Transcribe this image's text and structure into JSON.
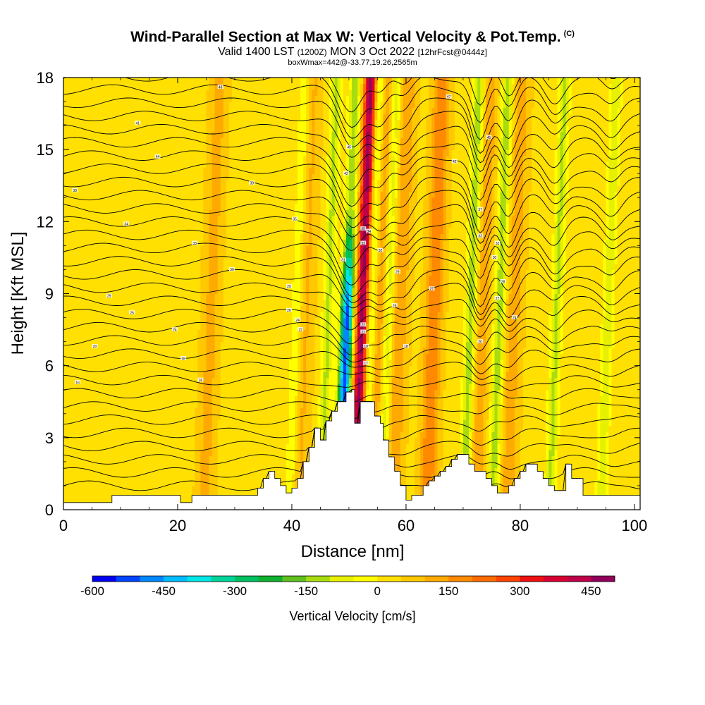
{
  "header": {
    "title": "Wind-Parallel Section at Max W: Vertical Velocity & Pot.Temp.",
    "copyright": "(C)",
    "valid_main": "Valid 1400 LST",
    "valid_utc": "(1200Z)",
    "valid_date": "MON 3 Oct 2022",
    "forecast": "[12hrFcst@0444z]",
    "box_info": "boxWmax=442@-33.77,19.26,2565m"
  },
  "chart_data": {
    "type": "heatmap",
    "title": "Wind-Parallel Section at Max W: Vertical Velocity & Pot.Temp.",
    "xlabel": "Distance [nm]",
    "ylabel": "Height [Kft MSL]",
    "xlim": [
      0,
      101
    ],
    "ylim": [
      0,
      18
    ],
    "x_ticks": [
      0,
      20,
      40,
      60,
      80,
      100
    ],
    "x_tick_labels": [
      "0",
      "20",
      "40",
      "60",
      "80",
      "100"
    ],
    "y_ticks": [
      0,
      3,
      6,
      9,
      12,
      15,
      18
    ],
    "y_tick_labels": [
      "0",
      "3",
      "6",
      "9",
      "12",
      "15",
      "18"
    ],
    "colorbar": {
      "label": "Vertical Velocity [cm/s]",
      "min": -600,
      "max": 500,
      "tick_values": [
        -600,
        -450,
        -300,
        -150,
        0,
        150,
        300,
        450
      ],
      "tick_labels": [
        "-600",
        "-450",
        "-300",
        "-150",
        "0",
        "150",
        "300",
        "450"
      ],
      "colors": [
        "#0000ee",
        "#0044ff",
        "#0088ff",
        "#00bbff",
        "#00e6e6",
        "#00d49a",
        "#00c060",
        "#10b030",
        "#60c020",
        "#a8dc10",
        "#e6f000",
        "#ffff00",
        "#ffe000",
        "#ffc800",
        "#ffaa00",
        "#ff8a00",
        "#ff6a00",
        "#ff4400",
        "#ee1111",
        "#d80030",
        "#c00048",
        "#90005a"
      ]
    },
    "background_w": 40,
    "updraft_cores": [
      {
        "x": 52.5,
        "w": 440
      },
      {
        "x": 55.5,
        "w": 120
      },
      {
        "x": 59.0,
        "w": 110
      },
      {
        "x": 65.0,
        "w": 160
      },
      {
        "x": 73.5,
        "w": 90
      },
      {
        "x": 79.0,
        "w": 90
      },
      {
        "x": 26.0,
        "w": 80
      },
      {
        "x": 42.5,
        "w": 70
      }
    ],
    "downdraft_cores": [
      {
        "x": 49.8,
        "w": -560
      },
      {
        "x": 54.0,
        "w": -180
      },
      {
        "x": 57.0,
        "w": -150
      },
      {
        "x": 46.5,
        "w": -150
      },
      {
        "x": 71.5,
        "w": -180
      },
      {
        "x": 76.5,
        "w": -170
      },
      {
        "x": 86.5,
        "w": -150
      },
      {
        "x": 95.5,
        "w": -130
      },
      {
        "x": 41.0,
        "w": -90
      }
    ],
    "terrain": {
      "x": [
        0,
        8.5,
        8.5,
        20.5,
        20.5,
        22.5,
        22.5,
        34,
        34,
        35,
        35,
        36,
        36,
        37,
        37,
        38,
        38,
        39,
        39,
        40,
        40,
        41,
        41,
        42,
        42,
        43,
        43,
        44,
        44,
        45,
        45,
        46,
        46,
        47,
        47,
        48,
        48,
        49.5,
        49.5,
        50.5,
        50.5,
        51,
        51,
        52,
        52,
        54.5,
        54.5,
        55.5,
        55.5,
        56,
        56,
        57,
        57,
        58,
        58,
        59,
        59,
        60,
        60,
        61,
        61,
        63,
        63,
        64,
        64,
        65,
        65,
        66,
        66,
        67,
        67,
        68,
        68,
        69,
        69,
        71,
        71,
        72,
        72,
        74,
        74,
        75,
        75,
        76,
        76,
        78,
        78,
        79,
        79,
        80,
        80,
        81,
        81,
        83,
        83,
        84,
        84,
        85,
        85,
        86,
        86,
        88,
        88,
        89,
        89,
        91,
        91,
        101
      ],
      "y": [
        0.3,
        0.3,
        0.6,
        0.6,
        0.3,
        0.3,
        0.6,
        0.6,
        0.9,
        0.9,
        1.3,
        1.3,
        1.6,
        1.6,
        1.3,
        1.3,
        1.0,
        1.0,
        0.7,
        0.7,
        0.9,
        0.9,
        1.3,
        1.3,
        2.0,
        2.0,
        2.6,
        2.6,
        3.4,
        3.4,
        2.9,
        2.9,
        3.7,
        3.7,
        4.1,
        4.1,
        4.5,
        4.5,
        4.9,
        4.9,
        5.0,
        5.0,
        3.6,
        3.6,
        4.5,
        4.5,
        3.9,
        3.9,
        3.6,
        3.6,
        2.9,
        2.9,
        2.2,
        2.2,
        1.6,
        1.6,
        1.0,
        1.0,
        0.4,
        0.4,
        0.6,
        0.6,
        1.0,
        1.0,
        1.2,
        1.2,
        1.4,
        1.4,
        1.6,
        1.6,
        1.8,
        1.8,
        2.1,
        2.1,
        2.3,
        2.3,
        1.9,
        1.9,
        1.6,
        1.6,
        1.3,
        1.3,
        1.0,
        1.0,
        0.7,
        0.7,
        1.0,
        1.0,
        1.3,
        1.3,
        1.6,
        1.6,
        1.9,
        1.9,
        1.6,
        1.6,
        1.3,
        1.3,
        1.0,
        1.0,
        0.8,
        0.8,
        1.9,
        1.9,
        1.3,
        1.3,
        0.6,
        0.6
      ]
    },
    "potential_temperature_contours": {
      "base_height": 1.0,
      "spacing_kft": 0.55,
      "count": 33,
      "labels": [
        {
          "x": 27.5,
          "y": 17.6,
          "label": "48"
        },
        {
          "x": 13,
          "y": 16.1,
          "label": "41"
        },
        {
          "x": 16.5,
          "y": 14.7,
          "label": "44"
        },
        {
          "x": 2,
          "y": 13.3,
          "label": "38"
        },
        {
          "x": 33,
          "y": 13.6,
          "label": "39"
        },
        {
          "x": 11,
          "y": 11.9,
          "label": "34"
        },
        {
          "x": 23,
          "y": 11.1,
          "label": "33"
        },
        {
          "x": 40.5,
          "y": 12.1,
          "label": "35"
        },
        {
          "x": 29.5,
          "y": 10.0,
          "label": "30"
        },
        {
          "x": 39.5,
          "y": 9.3,
          "label": "29"
        },
        {
          "x": 8,
          "y": 8.9,
          "label": "29"
        },
        {
          "x": 12,
          "y": 8.2,
          "label": "26"
        },
        {
          "x": 39.5,
          "y": 8.3,
          "label": "26"
        },
        {
          "x": 41,
          "y": 7.9,
          "label": "24"
        },
        {
          "x": 19.5,
          "y": 7.5,
          "label": "24"
        },
        {
          "x": 41.5,
          "y": 7.5,
          "label": "22"
        },
        {
          "x": 5.5,
          "y": 6.8,
          "label": "20"
        },
        {
          "x": 21,
          "y": 6.3,
          "label": "18"
        },
        {
          "x": 2.5,
          "y": 5.3,
          "label": "16"
        },
        {
          "x": 24,
          "y": 5.4,
          "label": "16"
        },
        {
          "x": 50,
          "y": 15.1,
          "label": "45"
        },
        {
          "x": 49.5,
          "y": 14.0,
          "label": "42"
        },
        {
          "x": 52.5,
          "y": 11.7,
          "label": "35"
        },
        {
          "x": 53.5,
          "y": 11.6,
          "label": "34"
        },
        {
          "x": 52.5,
          "y": 11.1,
          "label": "33"
        },
        {
          "x": 49,
          "y": 10.4,
          "label": "31"
        },
        {
          "x": 55.5,
          "y": 10.8,
          "label": "32"
        },
        {
          "x": 58.5,
          "y": 9.9,
          "label": "29"
        },
        {
          "x": 58,
          "y": 8.5,
          "label": "25"
        },
        {
          "x": 52.5,
          "y": 7.7,
          "label": "22"
        },
        {
          "x": 52.5,
          "y": 7.4,
          "label": "21"
        },
        {
          "x": 53,
          "y": 6.8,
          "label": "19"
        },
        {
          "x": 53,
          "y": 6.1,
          "label": "17"
        },
        {
          "x": 60,
          "y": 6.8,
          "label": "18"
        },
        {
          "x": 67.5,
          "y": 17.2,
          "label": "47"
        },
        {
          "x": 74.5,
          "y": 15.5,
          "label": "45"
        },
        {
          "x": 68.5,
          "y": 14.5,
          "label": "42"
        },
        {
          "x": 73,
          "y": 12.5,
          "label": "37"
        },
        {
          "x": 73,
          "y": 11.4,
          "label": "33"
        },
        {
          "x": 76,
          "y": 11.1,
          "label": "32"
        },
        {
          "x": 75.5,
          "y": 10.5,
          "label": "30"
        },
        {
          "x": 77,
          "y": 9.5,
          "label": "28"
        },
        {
          "x": 64.5,
          "y": 9.2,
          "label": "27"
        },
        {
          "x": 76,
          "y": 8.8,
          "label": "27"
        },
        {
          "x": 79,
          "y": 8.0,
          "label": "24"
        },
        {
          "x": 73,
          "y": 7.0,
          "label": "20"
        }
      ]
    }
  }
}
